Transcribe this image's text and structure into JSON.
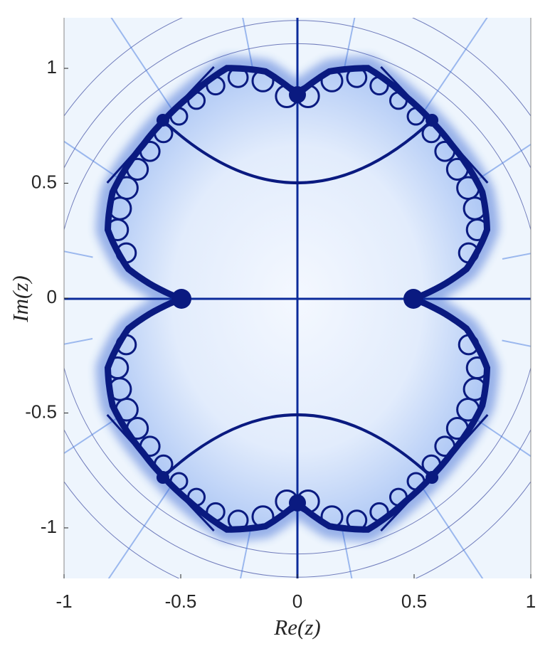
{
  "chart_data": {
    "type": "image",
    "xlabel": "Re(z)",
    "ylabel": "Im(z)",
    "xlim": [
      -1,
      1
    ],
    "ylim": [
      -1.22,
      1.22
    ],
    "xticks": [
      -1,
      -0.5,
      0,
      0.5,
      1
    ],
    "yticks": [
      -1,
      -0.5,
      0,
      0.5,
      1
    ],
    "color": "#0a1a80"
  }
}
